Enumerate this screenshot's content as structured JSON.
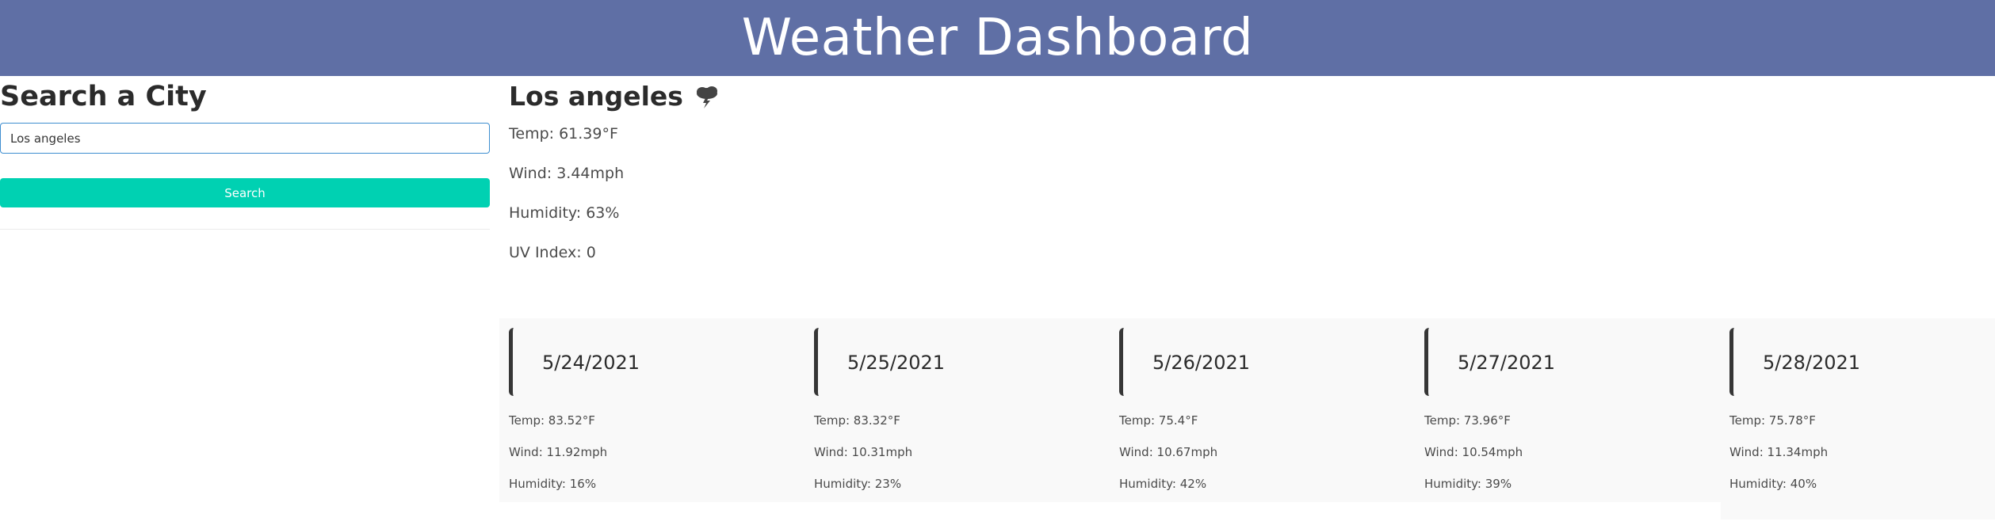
{
  "header": {
    "title": "Weather Dashboard"
  },
  "search": {
    "title": "Search a City",
    "input_value": "Los angeles",
    "button_label": "Search"
  },
  "current": {
    "city": "Los angeles",
    "icon": "thunderstorm-cloud-icon",
    "temp": "Temp: 61.39°F",
    "wind": "Wind: 3.44mph",
    "humidity": "Humidity: 63%",
    "uv": "UV Index: 0"
  },
  "forecast": [
    {
      "date": "5/24/2021",
      "temp": "Temp: 83.52°F",
      "wind": "Wind: 11.92mph",
      "humidity": "Humidity: 16%"
    },
    {
      "date": "5/25/2021",
      "temp": "Temp: 83.32°F",
      "wind": "Wind: 10.31mph",
      "humidity": "Humidity: 23%"
    },
    {
      "date": "5/26/2021",
      "temp": "Temp: 75.4°F",
      "wind": "Wind: 10.67mph",
      "humidity": "Humidity: 42%"
    },
    {
      "date": "5/27/2021",
      "temp": "Temp: 73.96°F",
      "wind": "Wind: 10.54mph",
      "humidity": "Humidity: 39%"
    },
    {
      "date": "5/28/2021",
      "temp": "Temp: 75.78°F",
      "wind": "Wind: 11.34mph",
      "humidity": "Humidity: 40%"
    }
  ],
  "colors": {
    "header_bg": "#5f6fa5",
    "button_bg": "#00d1b2",
    "input_border": "#3e8ed0",
    "forecast_bg": "#f9f9f9"
  }
}
